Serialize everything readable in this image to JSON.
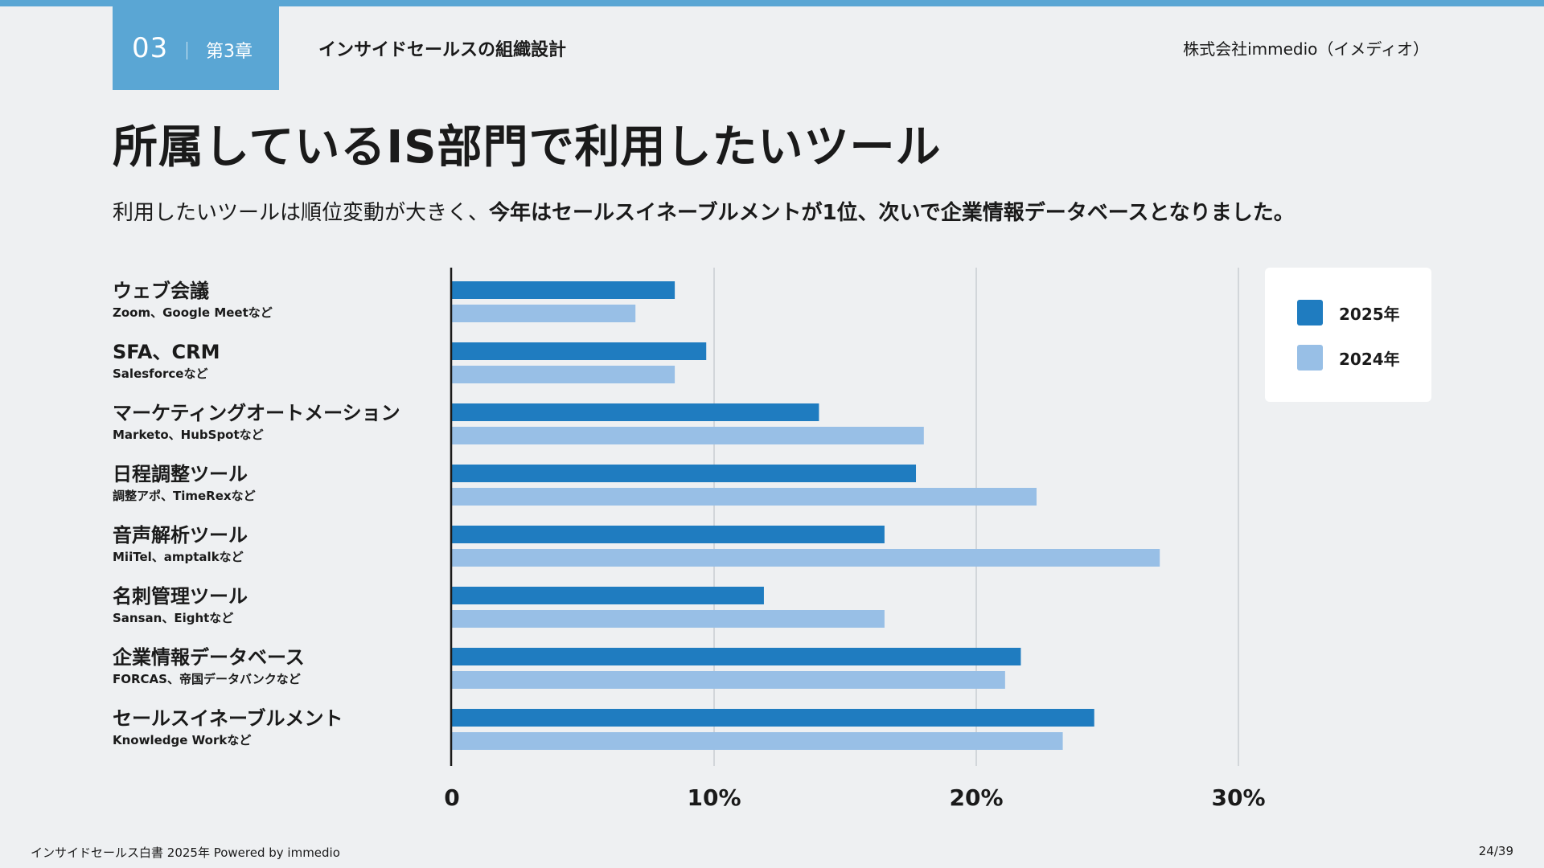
{
  "header": {
    "chapter_number": "03",
    "chapter_label": "第3章",
    "section_title": "インサイドセールスの組織設計",
    "company": "株式会社immedio（イメディオ）"
  },
  "page": {
    "title": "所属しているIS部門で利用したいツール",
    "lead_normal": "利用したいツールは順位変動が大きく、",
    "lead_bold": "今年はセールスイネーブルメントが1位、次いで企業情報データベースとなりました。"
  },
  "chart_data": {
    "type": "bar",
    "orientation": "horizontal",
    "categories": [
      {
        "name": "ウェブ会議",
        "sub": "Zoom、Google Meetなど"
      },
      {
        "name": "SFA、CRM",
        "sub": "Salesforceなど"
      },
      {
        "name": "マーケティングオートメーション",
        "sub": "Marketo、HubSpotなど"
      },
      {
        "name": "日程調整ツール",
        "sub": "調整アポ、TimeRexなど"
      },
      {
        "name": "音声解析ツール",
        "sub": "MiiTel、amptalkなど"
      },
      {
        "name": "名刺管理ツール",
        "sub": "Sansan、Eightなど"
      },
      {
        "name": "企業情報データベース",
        "sub": "FORCAS、帝国データバンクなど"
      },
      {
        "name": "セールスイネーブルメント",
        "sub": "Knowledge Workなど"
      }
    ],
    "series": [
      {
        "name": "2025年",
        "color": "#1f7cc0",
        "values": [
          8.5,
          9.7,
          14.0,
          17.7,
          16.5,
          11.9,
          21.7,
          24.5
        ]
      },
      {
        "name": "2024年",
        "color": "#98bfe6",
        "values": [
          7.0,
          8.5,
          18.0,
          22.3,
          27.0,
          16.5,
          21.1,
          23.3
        ]
      }
    ],
    "xlim": [
      0,
      30
    ],
    "ticks": [
      {
        "value": 0,
        "label": "0"
      },
      {
        "value": 10,
        "label": "10%"
      },
      {
        "value": 20,
        "label": "20%"
      },
      {
        "value": 30,
        "label": "30%"
      }
    ],
    "legend": {
      "position": "top-right"
    },
    "grid": true
  },
  "footer": {
    "left": "インサイドセールス白書 2025年 Powered by immedio",
    "page": "24/39"
  }
}
